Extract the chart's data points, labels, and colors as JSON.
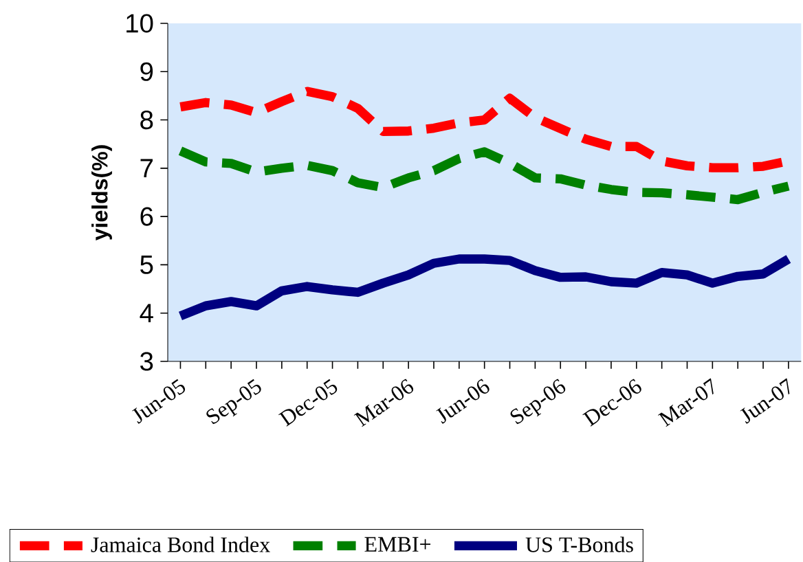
{
  "chart_data": {
    "type": "line",
    "ylabel": "yields(%)",
    "categories": [
      "Jun-05",
      null,
      null,
      "Sep-05",
      null,
      null,
      "Dec-05",
      null,
      null,
      "Mar-06",
      null,
      null,
      "Jun-06",
      null,
      null,
      "Sep-06",
      null,
      null,
      "Dec-06",
      null,
      null,
      "Mar-07",
      null,
      null,
      "Jun-07"
    ],
    "series": [
      {
        "name": "Jamaica Bond Index",
        "color": "#ff0000",
        "line_style": "dashed",
        "values": [
          8.27,
          8.36,
          8.31,
          8.15,
          8.38,
          8.59,
          8.48,
          8.24,
          7.76,
          7.77,
          7.83,
          7.94,
          8.0,
          8.45,
          8.05,
          7.82,
          7.6,
          7.45,
          7.45,
          7.15,
          7.05,
          7.01,
          7.01,
          7.04,
          7.15
        ]
      },
      {
        "name": "EMBI+",
        "color": "#008000",
        "line_style": "dashed",
        "values": [
          7.36,
          7.13,
          7.1,
          6.92,
          7.0,
          7.06,
          6.95,
          6.7,
          6.6,
          6.8,
          6.95,
          7.2,
          7.34,
          7.1,
          6.8,
          6.78,
          6.65,
          6.56,
          6.5,
          6.49,
          6.45,
          6.4,
          6.35,
          6.5,
          6.63
        ]
      },
      {
        "name": "US T-Bonds",
        "color": "#000080",
        "line_style": "solid",
        "values": [
          3.94,
          4.15,
          4.24,
          4.15,
          4.46,
          4.55,
          4.48,
          4.43,
          4.62,
          4.79,
          5.03,
          5.12,
          5.12,
          5.09,
          4.88,
          4.74,
          4.75,
          4.65,
          4.62,
          4.84,
          4.79,
          4.62,
          4.76,
          4.81,
          5.12
        ]
      }
    ],
    "ylim": [
      3,
      10
    ],
    "yticks": [
      3,
      4,
      5,
      6,
      7,
      8,
      9,
      10
    ],
    "grid": false,
    "legend": "bottom",
    "marker": "none"
  }
}
